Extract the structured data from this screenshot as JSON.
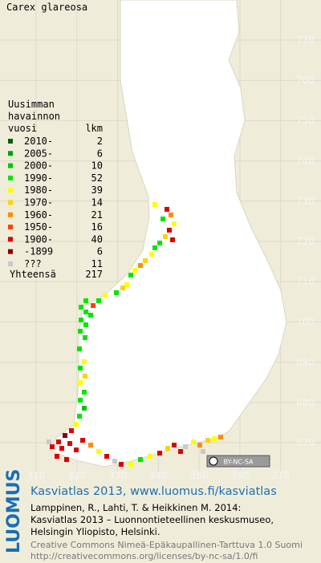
{
  "title": "Carex glareosa",
  "legend": {
    "heading": [
      "Uusimman",
      "havainnon"
    ],
    "columns": [
      "vuosi",
      "lkm"
    ],
    "rows": [
      {
        "label": "2010-",
        "count": 2,
        "color": "#006400"
      },
      {
        "label": "2005-",
        "count": 6,
        "color": "#00a000"
      },
      {
        "label": "2000-",
        "count": 10,
        "color": "#00c800"
      },
      {
        "label": "1990-",
        "count": 52,
        "color": "#00e600"
      },
      {
        "label": "1980-",
        "count": 39,
        "color": "#ffff00"
      },
      {
        "label": "1970-",
        "count": 14,
        "color": "#ffd200"
      },
      {
        "label": "1960-",
        "count": 21,
        "color": "#ff8c00"
      },
      {
        "label": "1950-",
        "count": 16,
        "color": "#ff4000"
      },
      {
        "label": "1900-",
        "count": 40,
        "color": "#dc0000"
      },
      {
        "label": "-1899",
        "count": 6,
        "color": "#8b0000"
      },
      {
        "label": "???",
        "count": 11,
        "color": "#c8c8c8"
      }
    ],
    "total": {
      "label": "Yhteensä",
      "count": 217
    }
  },
  "grid": {
    "y_labels": [
      770,
      760,
      750,
      740,
      730,
      720,
      710,
      700,
      690,
      680,
      670
    ],
    "x_labels": [
      310,
      320,
      330,
      340,
      350,
      360,
      370
    ]
  },
  "license_badge": "BY-NC-SA",
  "footer": {
    "brand": "LUOMUS",
    "link": "Kasviatlas 2013, www.luomus.fi/kasviatlas",
    "citation": [
      "Lamppinen, R., Lahti, T. & Heikkinen M. 2014:",
      "Kasviatlas 2013 – Luonnontieteellinen keskusmuseo,",
      "Helsingin Yliopisto, Helsinki."
    ],
    "license": [
      "Creative Commons Nimeä-Epäkaupallinen-Tarttuva 1.0 Suomi",
      "http://creativecommons.org/licenses/by-nc-sa/1.0/fi"
    ]
  }
}
